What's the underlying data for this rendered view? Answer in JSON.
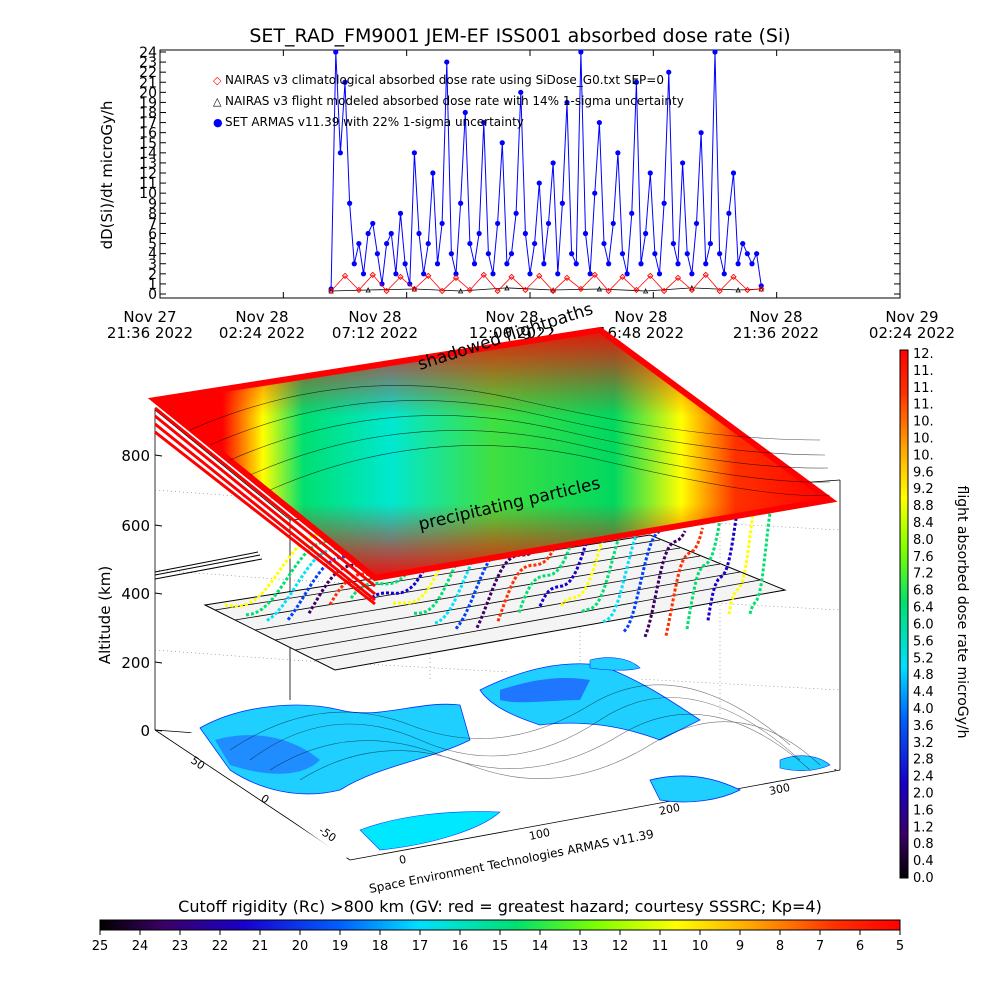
{
  "chart_data": [
    {
      "type": "line",
      "title": "SET_RAD_FM9001  JEM-EF ISS001 absorbed dose rate (Si)",
      "ylabel": "dD(Si)/dt microGy/h",
      "ylim": [
        0,
        24
      ],
      "y_ticks": [
        "0",
        "1",
        "2",
        "3",
        "4",
        "5",
        "6",
        "7",
        "8",
        "9",
        "10",
        "11",
        "12",
        "13",
        "14",
        "15",
        "16",
        "17",
        "18",
        "19",
        "20",
        "21",
        "22",
        "23",
        "24"
      ],
      "x_ticks": [
        {
          "date": "Nov 27",
          "time": "21:36 2022"
        },
        {
          "date": "Nov 28",
          "time": "02:24 2022"
        },
        {
          "date": "Nov 28",
          "time": "07:12 2022"
        },
        {
          "date": "Nov 28",
          "time": "12:00 2022"
        },
        {
          "date": "Nov 28",
          "time": "16:48 2022"
        },
        {
          "date": "Nov 28",
          "time": "21:36 2022"
        },
        {
          "date": "Nov 29",
          "time": "02:24 2022"
        }
      ],
      "legend": [
        {
          "symbol": "◇",
          "label": "NAIRAS v3 climatological absorbed dose rate using SiDose_G0.txt SEP=0",
          "color": "#ff0000"
        },
        {
          "symbol": "△",
          "label": "NAIRAS v3 flight modeled absorbed dose rate with 14% 1-sigma uncertainty",
          "color": "#000000"
        },
        {
          "symbol": "●",
          "label": "SET ARMAS v11.39 with 22% 1-sigma uncertainty",
          "color": "#0000ff"
        }
      ],
      "series": [
        {
          "name": "SET ARMAS v11.39 with 22% 1-sigma uncertainty",
          "color": "#0000ff",
          "x": [
            0.37,
            0.38,
            0.39,
            0.4,
            0.41,
            0.42,
            0.43,
            0.44,
            0.45,
            0.46,
            0.47,
            0.48,
            0.49,
            0.5,
            0.51,
            0.52,
            0.53,
            0.54,
            0.55,
            0.56,
            0.57,
            0.58,
            0.59,
            0.6,
            0.61,
            0.62,
            0.63,
            0.64,
            0.65,
            0.66,
            0.67,
            0.68,
            0.69,
            0.7,
            0.71,
            0.72,
            0.73,
            0.74,
            0.75,
            0.76,
            0.77,
            0.78,
            0.79,
            0.8,
            0.81,
            0.82,
            0.83,
            0.84,
            0.85,
            0.86,
            0.87,
            0.88,
            0.89,
            0.9,
            0.91,
            0.92,
            0.93,
            0.94,
            0.95,
            0.96,
            0.97,
            0.98,
            0.99,
            1.0,
            1.01,
            1.02,
            1.03,
            1.04,
            1.05,
            1.06,
            1.07,
            1.08,
            1.09,
            1.1,
            1.11,
            1.12,
            1.13,
            1.14,
            1.15,
            1.16,
            1.17,
            1.18,
            1.19,
            1.2,
            1.21,
            1.22,
            1.23,
            1.24,
            1.25,
            1.26,
            1.27,
            1.28,
            1.29,
            1.3
          ],
          "y": [
            0.5,
            24,
            14,
            21,
            9,
            3,
            5,
            2,
            6,
            7,
            4,
            1,
            5,
            6,
            2,
            8,
            3,
            1,
            14,
            6,
            2,
            5,
            12,
            3,
            7,
            23,
            4,
            2,
            9,
            18,
            5,
            3,
            6,
            17,
            4,
            2,
            7,
            15,
            3,
            4,
            8,
            20,
            6,
            2,
            5,
            11,
            3,
            7,
            13,
            2,
            9,
            19,
            4,
            3,
            24,
            6,
            2,
            10,
            17,
            5,
            3,
            7,
            14,
            4,
            2,
            8,
            21,
            3,
            6,
            12,
            4,
            2,
            9,
            22,
            5,
            3,
            13,
            4,
            2,
            7,
            16,
            3,
            5,
            24,
            4,
            2,
            8,
            12,
            3,
            5,
            4,
            3,
            4,
            0.8
          ]
        },
        {
          "name": "NAIRAS v3 flight modeled absorbed dose rate with 14% 1-sigma uncertainty",
          "color": "#000000",
          "x": [
            0.37,
            0.45,
            0.55,
            0.65,
            0.75,
            0.85,
            0.95,
            1.05,
            1.15,
            1.25,
            1.3
          ],
          "y": [
            0.3,
            0.4,
            0.5,
            0.3,
            0.6,
            0.4,
            0.5,
            0.3,
            0.6,
            0.4,
            0.5
          ]
        },
        {
          "name": "NAIRAS v3 climatological absorbed dose rate using SiDose_G0.txt SEP=0",
          "color": "#ff0000",
          "x": [
            0.37,
            0.4,
            0.43,
            0.46,
            0.49,
            0.52,
            0.55,
            0.58,
            0.61,
            0.64,
            0.67,
            0.7,
            0.73,
            0.76,
            0.79,
            0.82,
            0.85,
            0.88,
            0.91,
            0.94,
            0.97,
            1.0,
            1.03,
            1.06,
            1.09,
            1.12,
            1.15,
            1.18,
            1.21,
            1.24,
            1.27,
            1.3
          ],
          "y": [
            0.3,
            1.8,
            0.4,
            1.9,
            0.3,
            1.7,
            0.5,
            1.8,
            0.3,
            1.6,
            0.4,
            1.9,
            0.3,
            1.7,
            0.4,
            1.8,
            0.3,
            1.6,
            0.5,
            1.9,
            0.3,
            1.7,
            0.4,
            1.8,
            0.3,
            1.6,
            0.4,
            1.9,
            0.3,
            1.7,
            0.4,
            0.5
          ]
        }
      ]
    },
    {
      "type": "heatmap",
      "zlabel": "Altitude (km)",
      "z_ticks": [
        "0",
        "200",
        "400",
        "600",
        "800"
      ],
      "x_ticks": [
        "0",
        "100",
        "200",
        "300"
      ],
      "y_ticks": [
        "-50",
        "0",
        "50"
      ],
      "label_top": "shadowed flightpaths",
      "label_mid": "precipitating particles",
      "credit": "Space Environment Technologies ARMAS v11.39"
    },
    {
      "type": "colorbar",
      "label": "flight absorbed dose rate microGy/h",
      "ticks": [
        "12.",
        "11.",
        "11.",
        "11.",
        "10.",
        "10.",
        "10.",
        "9.6",
        "9.2",
        "8.8",
        "8.4",
        "8.0",
        "7.6",
        "7.2",
        "6.8",
        "6.4",
        "6.0",
        "5.6",
        "5.2",
        "4.8",
        "4.4",
        "4.0",
        "3.6",
        "3.2",
        "2.8",
        "2.4",
        "2.0",
        "1.6",
        "1.2",
        "0.8",
        "0.4",
        "0.0"
      ]
    },
    {
      "type": "colorbar",
      "label": "Cutoff rigidity (Rc) >800 km (GV: red = greatest hazard; courtesy SSSRC; Kp=4)",
      "ticks": [
        "25",
        "24",
        "23",
        "22",
        "21",
        "20",
        "19",
        "18",
        "17",
        "16",
        "15",
        "14",
        "13",
        "12",
        "11",
        "10",
        "9",
        "8",
        "7",
        "6",
        "5"
      ]
    }
  ]
}
